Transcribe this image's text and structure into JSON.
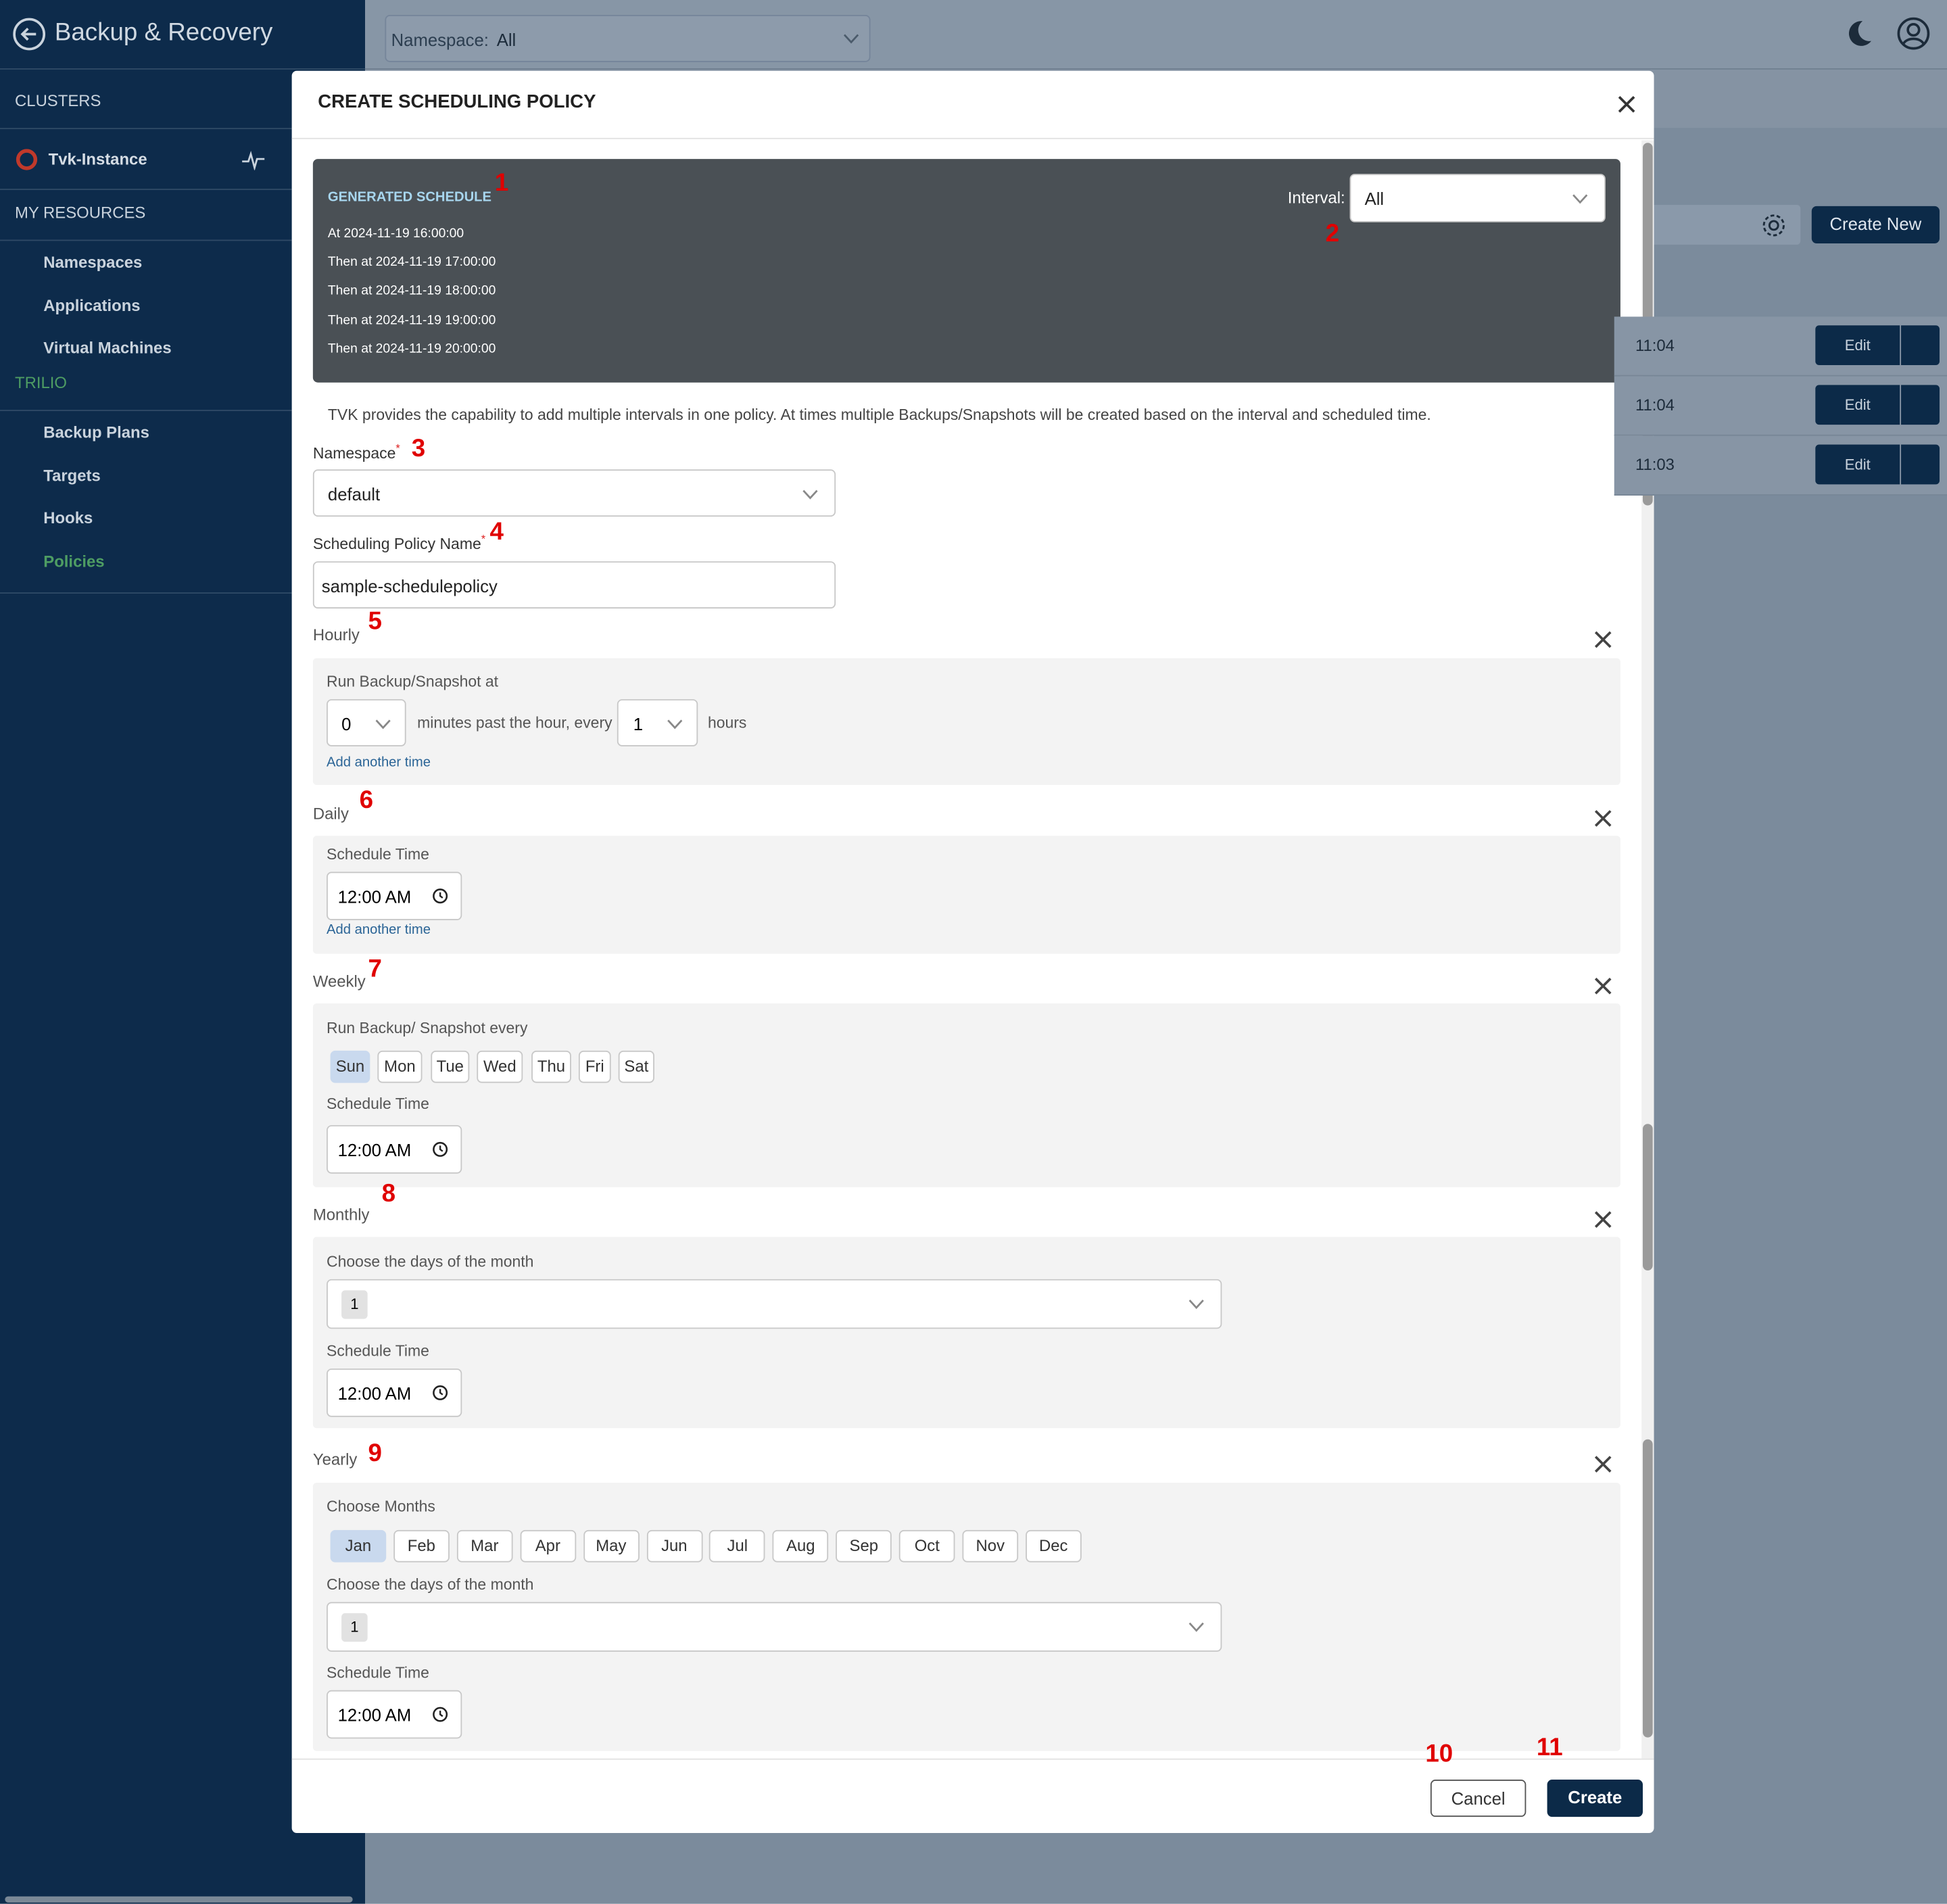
{
  "sidebar": {
    "title": "Backup & Recovery",
    "clusters_heading": "CLUSTERS",
    "cluster": "Tvk-Instance",
    "resources_heading": "MY RESOURCES",
    "resources": [
      "Namespaces",
      "Applications",
      "Virtual Machines"
    ],
    "trilio_heading": "TRILIO",
    "trilio_items": [
      "Backup Plans",
      "Targets",
      "Hooks",
      "Policies"
    ]
  },
  "topbar": {
    "namespace_label": "Namespace:",
    "namespace_value": "All"
  },
  "background": {
    "create_new": "Create New",
    "rows": [
      {
        "time": "11:04",
        "action": "Edit"
      },
      {
        "time": "11:04",
        "action": "Edit"
      },
      {
        "time": "11:03",
        "action": "Edit"
      }
    ]
  },
  "dialog": {
    "title": "CREATE SCHEDULING POLICY",
    "schedule": {
      "heading": "GENERATED SCHEDULE",
      "entries": [
        "At 2024-11-19 16:00:00",
        "Then at 2024-11-19 17:00:00",
        "Then at 2024-11-19 18:00:00",
        "Then at 2024-11-19 19:00:00",
        "Then at 2024-11-19 20:00:00"
      ],
      "interval_label": "Interval:",
      "interval_value": "All"
    },
    "info": "TVK provides the capability to add multiple intervals in one policy. At times multiple Backups/Snapshots will be created based on the interval and scheduled time.",
    "namespace": {
      "label": "Namespace",
      "required": "*",
      "value": "default"
    },
    "policy_name": {
      "label": "Scheduling Policy Name",
      "required": "*",
      "value": "sample-schedulepolicy"
    },
    "hourly": {
      "title": "Hourly",
      "label": "Run Backup/Snapshot at",
      "minutes": "0",
      "text": "minutes past the hour, every",
      "hours": "1",
      "hours_text": "hours",
      "add": "Add another time"
    },
    "daily": {
      "title": "Daily",
      "label": "Schedule Time",
      "time": "12:00 AM",
      "add": "Add another time"
    },
    "weekly": {
      "title": "Weekly",
      "label": "Run Backup/ Snapshot every",
      "days": [
        {
          "label": "Sun",
          "selected": true
        },
        {
          "label": "Mon",
          "selected": false
        },
        {
          "label": "Tue",
          "selected": false
        },
        {
          "label": "Wed",
          "selected": false
        },
        {
          "label": "Thu",
          "selected": false
        },
        {
          "label": "Fri",
          "selected": false
        },
        {
          "label": "Sat",
          "selected": false
        }
      ],
      "time_label": "Schedule Time",
      "time": "12:00 AM"
    },
    "monthly": {
      "title": "Monthly",
      "days_label": "Choose the days of the month",
      "day": "1",
      "time_label": "Schedule Time",
      "time": "12:00 AM"
    },
    "yearly": {
      "title": "Yearly",
      "months_label": "Choose Months",
      "months": [
        {
          "label": "Jan",
          "selected": true
        },
        {
          "label": "Feb",
          "selected": false
        },
        {
          "label": "Mar",
          "selected": false
        },
        {
          "label": "Apr",
          "selected": false
        },
        {
          "label": "May",
          "selected": false
        },
        {
          "label": "Jun",
          "selected": false
        },
        {
          "label": "Jul",
          "selected": false
        },
        {
          "label": "Aug",
          "selected": false
        },
        {
          "label": "Sep",
          "selected": false
        },
        {
          "label": "Oct",
          "selected": false
        },
        {
          "label": "Nov",
          "selected": false
        },
        {
          "label": "Dec",
          "selected": false
        }
      ],
      "days_label": "Choose the days of the month",
      "day": "1",
      "time_label": "Schedule Time",
      "time": "12:00 AM"
    },
    "footer": {
      "cancel": "Cancel",
      "create": "Create"
    }
  },
  "annotations": [
    "1",
    "2",
    "3",
    "4",
    "5",
    "6",
    "7",
    "8",
    "9",
    "10",
    "11"
  ]
}
